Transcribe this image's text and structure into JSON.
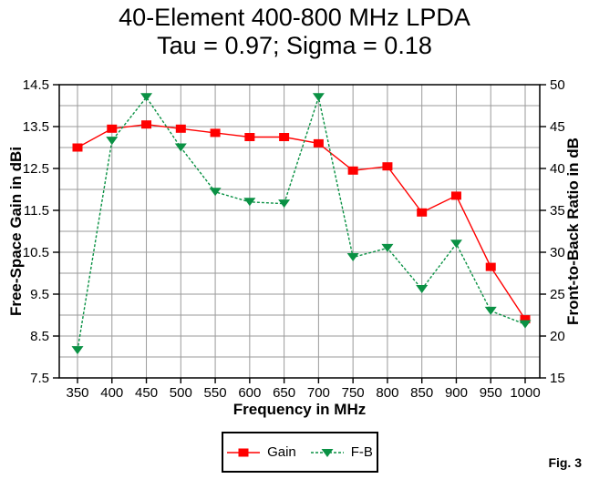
{
  "figure_label": "Fig. 3",
  "legend": {
    "items": [
      {
        "label": "Gain"
      },
      {
        "label": "F-B"
      }
    ]
  },
  "colors": {
    "gain": "#ff0000",
    "fb": "#0a9144",
    "grid": "#9a9a9a",
    "axis": "#000000",
    "background": "#ffffff"
  },
  "chart_data": {
    "type": "line",
    "title": "40-Element 400-800 MHz LPDA",
    "subtitle": "Tau = 0.97; Sigma = 0.18",
    "xlabel": "Frequency in MHz",
    "x": [
      350,
      400,
      450,
      500,
      550,
      600,
      650,
      700,
      750,
      800,
      850,
      900,
      950,
      1000
    ],
    "series": [
      {
        "name": "Gain",
        "axis": "left",
        "color": "#ff0000",
        "marker": "square",
        "line": "solid",
        "values": [
          13.0,
          13.45,
          13.55,
          13.45,
          13.35,
          13.25,
          13.25,
          13.1,
          12.45,
          12.55,
          11.45,
          11.85,
          10.15,
          8.9
        ]
      },
      {
        "name": "F-B",
        "axis": "right",
        "color": "#0a9144",
        "marker": "triangle-down",
        "line": "dashed",
        "values": [
          18.3,
          43.3,
          48.5,
          42.5,
          37.2,
          36.0,
          35.8,
          48.5,
          29.4,
          30.5,
          25.6,
          31.0,
          23.0,
          21.4
        ]
      }
    ],
    "left_axis": {
      "title": "Free-Space Gain in dBi",
      "min": 7.5,
      "max": 14.5,
      "label_step": 1.0,
      "grid_step": 0.5
    },
    "right_axis": {
      "title": "Front-to-Back Ratio in dB",
      "min": 15,
      "max": 50,
      "label_step": 5
    },
    "grid": true,
    "legend_position": "bottom"
  }
}
